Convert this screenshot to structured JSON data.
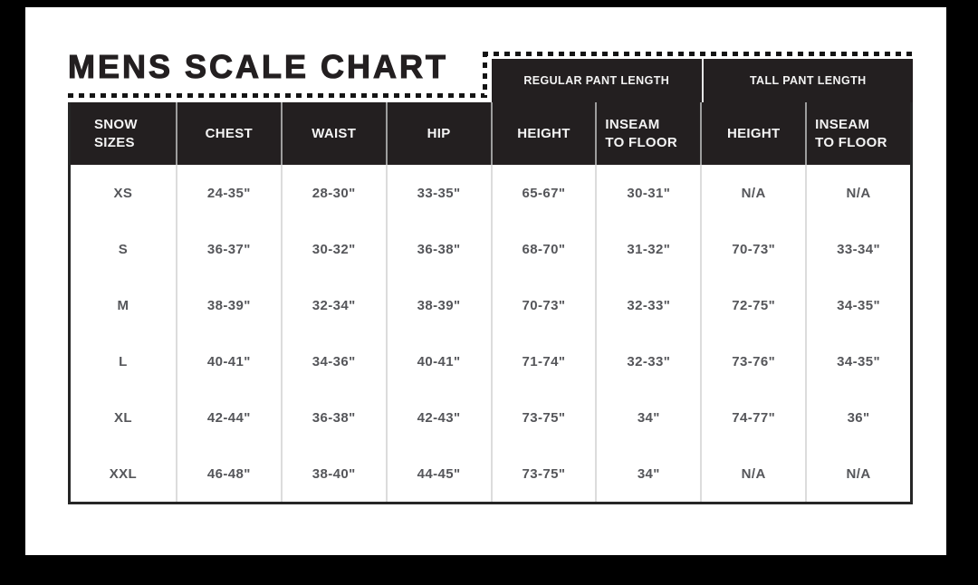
{
  "title": "MENS SCALE CHART",
  "pant_headers": [
    "REGULAR PANT LENGTH",
    "TALL PANT LENGTH"
  ],
  "table": {
    "columns": [
      "SNOW\nSIZES",
      "CHEST",
      "WAIST",
      "HIP",
      "HEIGHT",
      "INSEAM\nTO FLOOR",
      "HEIGHT",
      "INSEAM\nTO FLOOR"
    ],
    "rows": [
      {
        "size": "XS",
        "values": [
          "24-35\"",
          "28-30\"",
          "33-35\"",
          "65-67\"",
          "30-31\"",
          "N/A",
          "N/A"
        ]
      },
      {
        "size": "S",
        "values": [
          "36-37\"",
          "30-32\"",
          "36-38\"",
          "68-70\"",
          "31-32\"",
          "70-73\"",
          "33-34\""
        ]
      },
      {
        "size": "M",
        "values": [
          "38-39\"",
          "32-34\"",
          "38-39\"",
          "70-73\"",
          "32-33\"",
          "72-75\"",
          "34-35\""
        ]
      },
      {
        "size": "L",
        "values": [
          "40-41\"",
          "34-36\"",
          "40-41\"",
          "71-74\"",
          "32-33\"",
          "73-76\"",
          "34-35\""
        ]
      },
      {
        "size": "XL",
        "values": [
          "42-44\"",
          "36-38\"",
          "42-43\"",
          "73-75\"",
          "34\"",
          "74-77\"",
          "36\""
        ]
      },
      {
        "size": "XXL",
        "values": [
          "46-48\"",
          "38-40\"",
          "44-45\"",
          "73-75\"",
          "34\"",
          "N/A",
          "N/A"
        ]
      }
    ]
  },
  "colors": {
    "frame": "#000000",
    "paper": "#ffffff",
    "header_bg": "#231f20",
    "header_text": "#f4f4f4",
    "data_text": "#55565a",
    "column_separator": "#dcdcdc"
  }
}
